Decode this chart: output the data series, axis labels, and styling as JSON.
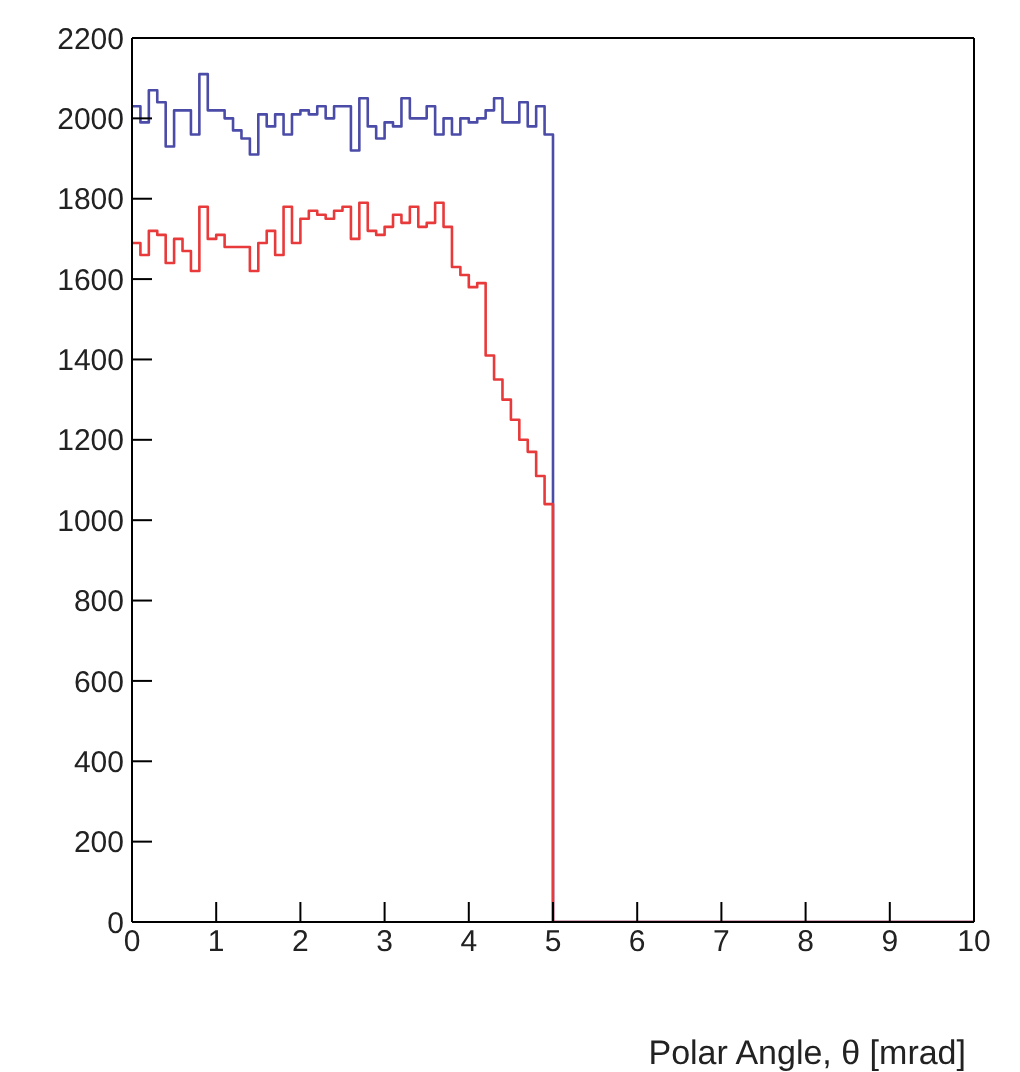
{
  "chart_data": {
    "type": "histogram",
    "xlabel": "Polar Angle, θ [mrad]",
    "bins": [
      0,
      0.1,
      0.2,
      0.3,
      0.4,
      0.5,
      0.6,
      0.7,
      0.8,
      0.9,
      1,
      1.1,
      1.2,
      1.3,
      1.4,
      1.5,
      1.6,
      1.7,
      1.8,
      1.9,
      2,
      2.1,
      2.2,
      2.3,
      2.4,
      2.5,
      2.6,
      2.7,
      2.8,
      2.9,
      3,
      3.1,
      3.2,
      3.3,
      3.4,
      3.5,
      3.6,
      3.7,
      3.8,
      3.9,
      4,
      4.1,
      4.2,
      4.3,
      4.4,
      4.5,
      4.6,
      4.7,
      4.8,
      4.9,
      5,
      5.1,
      5.2,
      5.3,
      5.4,
      5.5,
      5.6,
      5.7,
      5.8,
      5.9,
      6,
      6.1,
      6.2,
      6.3,
      6.4,
      6.5,
      6.6,
      6.7,
      6.8,
      6.9,
      7,
      7.1,
      7.2,
      7.3,
      7.4,
      7.5,
      7.6,
      7.7,
      7.8,
      7.9,
      8,
      8.1,
      8.2,
      8.3,
      8.4,
      8.5,
      8.6,
      8.7,
      8.8,
      8.9,
      9,
      9.1,
      9.2,
      9.3,
      9.4,
      9.5,
      9.6,
      9.7,
      9.8,
      9.9,
      10
    ],
    "series": [
      {
        "color": "#4b4ba8",
        "values": [
          2030,
          1990,
          2070,
          2040,
          1930,
          2020,
          2020,
          1960,
          2110,
          2020,
          2020,
          2000,
          1970,
          1950,
          1910,
          2010,
          1980,
          2010,
          1960,
          2010,
          2020,
          2010,
          2030,
          2000,
          2030,
          2030,
          1920,
          2050,
          1980,
          1950,
          1990,
          1980,
          2050,
          2000,
          2000,
          2030,
          1960,
          2000,
          1960,
          2000,
          1990,
          2000,
          2020,
          2050,
          1990,
          1990,
          2040,
          1980,
          2030,
          1960,
          0,
          0,
          0,
          0,
          0,
          0,
          0,
          0,
          0,
          0,
          0,
          0,
          0,
          0,
          0,
          0,
          0,
          0,
          0,
          0,
          0,
          0,
          0,
          0,
          0,
          0,
          0,
          0,
          0,
          0,
          0,
          0,
          0,
          0,
          0,
          0,
          0,
          0,
          0,
          0,
          0,
          0,
          0,
          0,
          0,
          0,
          0,
          0,
          0,
          0
        ]
      },
      {
        "color": "#e83a3a",
        "values": [
          1690,
          1660,
          1720,
          1710,
          1640,
          1700,
          1670,
          1620,
          1780,
          1700,
          1710,
          1680,
          1680,
          1680,
          1620,
          1690,
          1720,
          1660,
          1780,
          1690,
          1750,
          1770,
          1760,
          1750,
          1770,
          1780,
          1700,
          1790,
          1720,
          1710,
          1730,
          1760,
          1740,
          1780,
          1730,
          1740,
          1790,
          1730,
          1630,
          1610,
          1580,
          1590,
          1410,
          1350,
          1300,
          1250,
          1200,
          1170,
          1110,
          1040,
          0,
          0,
          0,
          0,
          0,
          0,
          0,
          0,
          0,
          0,
          0,
          0,
          0,
          0,
          0,
          0,
          0,
          0,
          0,
          0,
          0,
          0,
          0,
          0,
          0,
          0,
          0,
          0,
          0,
          0,
          0,
          0,
          0,
          0,
          0,
          0,
          0,
          0,
          0,
          0,
          0,
          0,
          0,
          0,
          0,
          0,
          0,
          0,
          0,
          0
        ]
      }
    ],
    "xlim": [
      0,
      10
    ],
    "xticks": [
      0,
      1,
      2,
      3,
      4,
      5,
      6,
      7,
      8,
      9,
      10
    ],
    "ylim": [
      0,
      2200
    ],
    "yticks": [
      0,
      200,
      400,
      600,
      800,
      1000,
      1200,
      1400,
      1600,
      1800,
      2000,
      2200
    ]
  }
}
